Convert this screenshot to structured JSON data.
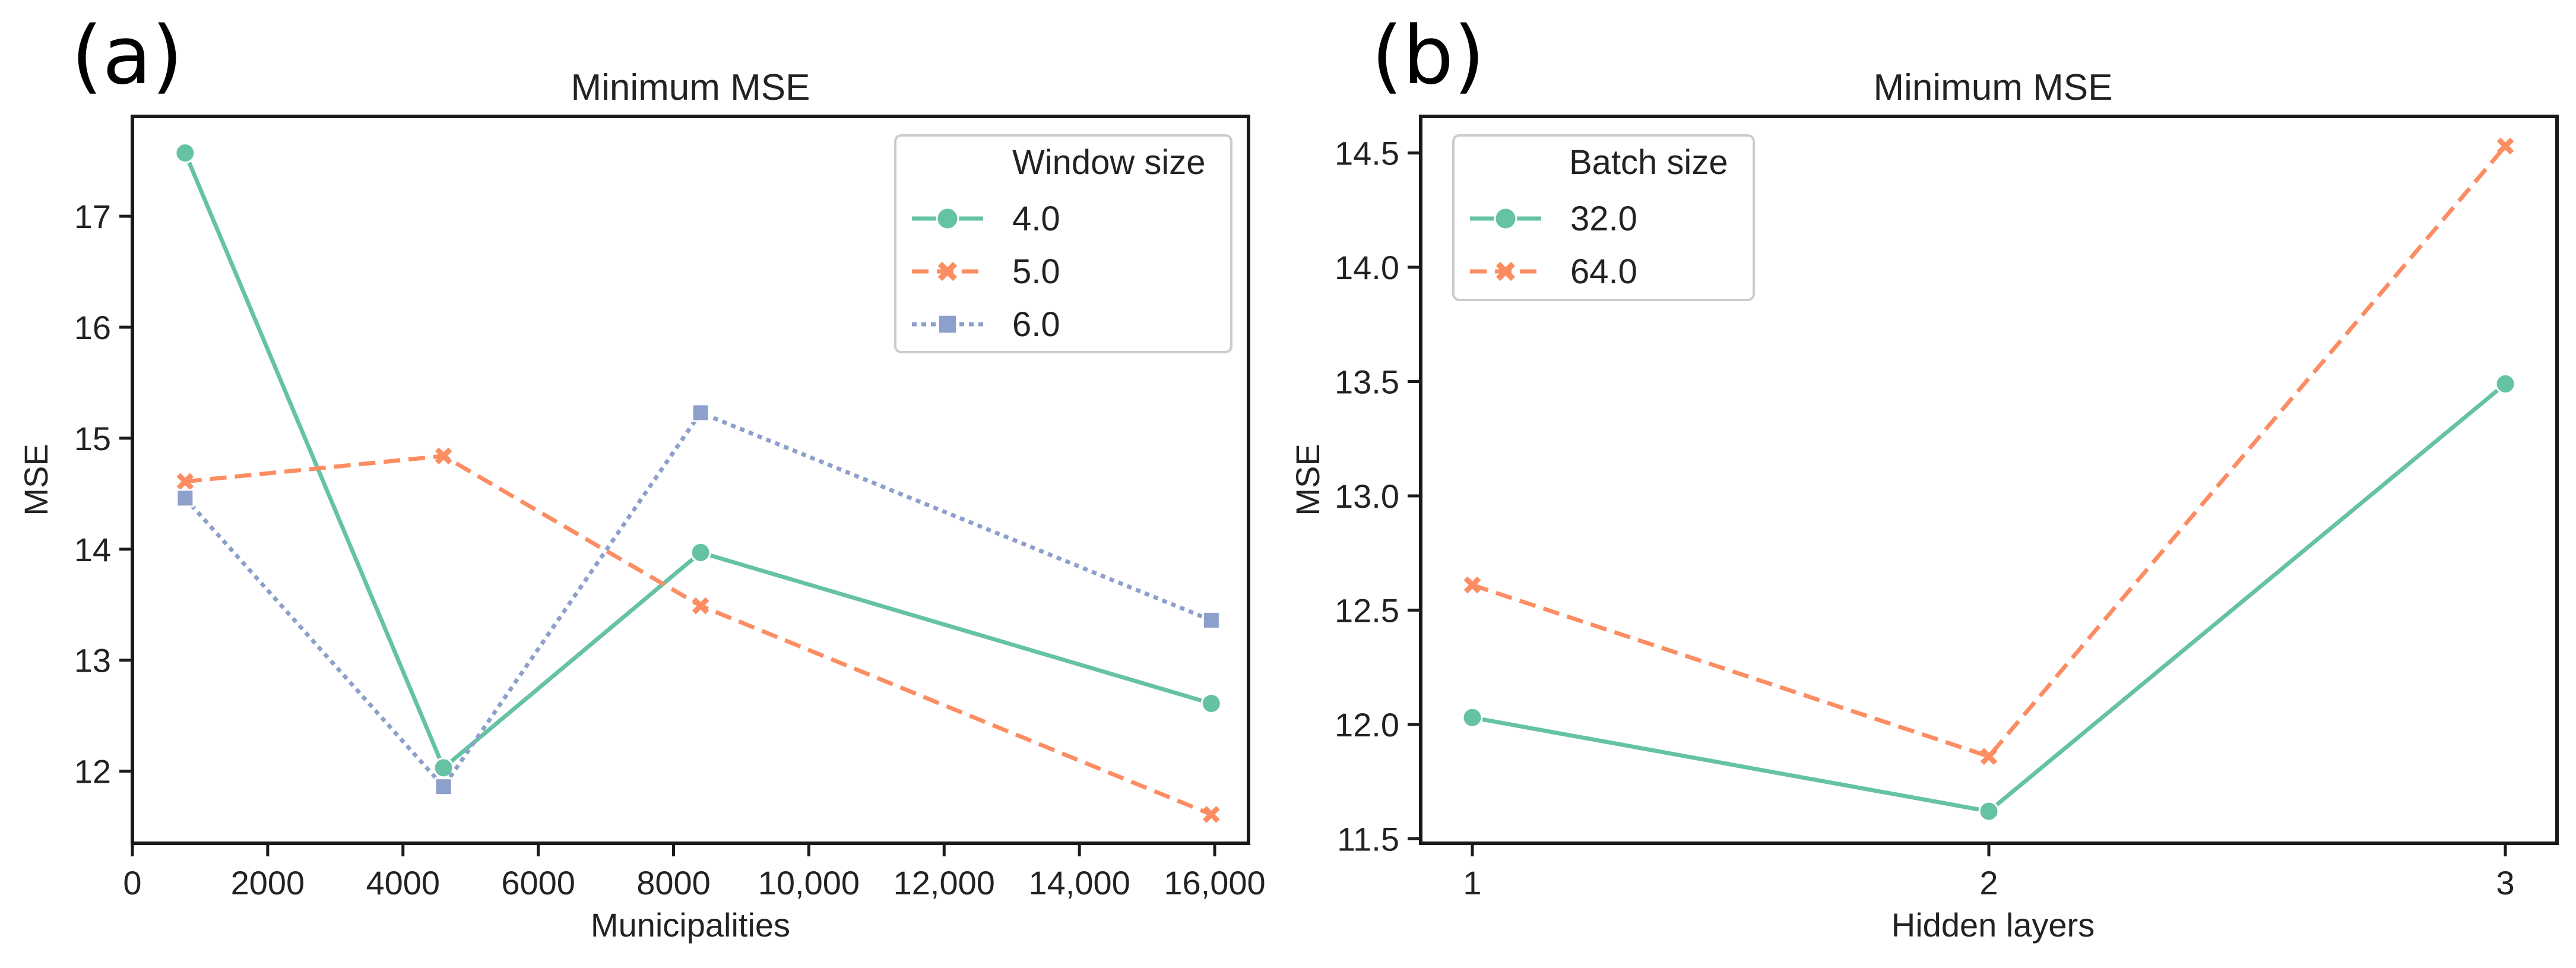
{
  "colors": {
    "series1": "#66c2a5",
    "series2": "#fc8d62",
    "series3": "#8da0cb",
    "axis": "#1a1a1a",
    "text": "#222222"
  },
  "chart_data": [
    {
      "type": "line",
      "panel_label": "(a)",
      "title": "Minimum MSE",
      "xlabel": "Municipalities",
      "ylabel": "MSE",
      "xlim": [
        0,
        16500
      ],
      "ylim": [
        11.35,
        17.9
      ],
      "xticks": [
        0,
        2000,
        4000,
        6000,
        8000,
        10000,
        12000,
        14000,
        16000
      ],
      "xtick_labels": [
        "0",
        "2000",
        "4000",
        "6000",
        "8000",
        "10,000",
        "12,000",
        "14,000",
        "16,000"
      ],
      "yticks": [
        12,
        13,
        14,
        15,
        16,
        17
      ],
      "ytick_labels": [
        "12",
        "13",
        "14",
        "15",
        "16",
        "17"
      ],
      "legend_title": "Window size",
      "legend_position": "top-right",
      "series": [
        {
          "name": "4.0",
          "marker": "circle",
          "dash": "solid",
          "x": [
            780,
            4600,
            8400,
            15950
          ],
          "values": [
            17.57,
            12.03,
            13.97,
            12.61
          ]
        },
        {
          "name": "5.0",
          "marker": "x",
          "dash": "dashed",
          "x": [
            780,
            4600,
            8400,
            15950
          ],
          "values": [
            14.61,
            14.84,
            13.49,
            11.61
          ]
        },
        {
          "name": "6.0",
          "marker": "square",
          "dash": "dotted",
          "x": [
            780,
            4600,
            8400,
            15950
          ],
          "values": [
            14.46,
            11.86,
            15.23,
            13.36
          ]
        }
      ]
    },
    {
      "type": "line",
      "panel_label": "(b)",
      "title": "Minimum MSE",
      "xlabel": "Hidden layers",
      "ylabel": "MSE",
      "xlim": [
        0.9,
        3.1
      ],
      "ylim": [
        11.48,
        14.66
      ],
      "xticks": [
        1,
        2,
        3
      ],
      "xtick_labels": [
        "1",
        "2",
        "3"
      ],
      "yticks": [
        11.5,
        12.0,
        12.5,
        13.0,
        13.5,
        14.0,
        14.5
      ],
      "ytick_labels": [
        "11.5",
        "12.0",
        "12.5",
        "13.0",
        "13.5",
        "14.0",
        "14.5"
      ],
      "legend_title": "Batch size",
      "legend_position": "top-left",
      "series": [
        {
          "name": "32.0",
          "marker": "circle",
          "dash": "solid",
          "x": [
            1,
            2,
            3
          ],
          "values": [
            12.03,
            11.62,
            13.49
          ]
        },
        {
          "name": "64.0",
          "marker": "x",
          "dash": "dashed",
          "x": [
            1,
            2,
            3
          ],
          "values": [
            12.61,
            11.86,
            14.53
          ]
        }
      ]
    }
  ]
}
